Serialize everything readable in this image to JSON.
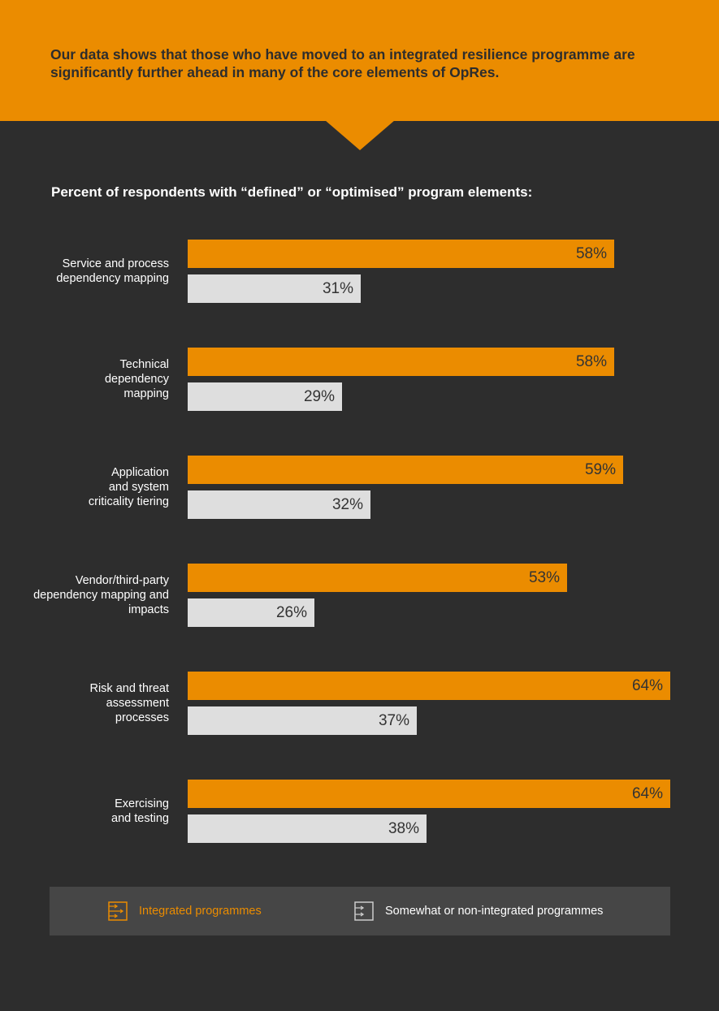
{
  "header": {
    "text": "Our data shows that those who have moved to an integrated resilience programme are significantly further ahead in many of the core elements of OpRes."
  },
  "colors": {
    "integrated": "#eb8c00",
    "non_integrated": "#dedede",
    "background": "#2d2d2d"
  },
  "chart_data": {
    "type": "bar",
    "orientation": "horizontal",
    "title": "Percent of respondents with “defined” or “optimised” program elements:",
    "categories": [
      "Service and process\ndependency mapping",
      "Technical\ndependency\nmapping",
      "Application\nand system\ncriticality tiering",
      "Vendor/third-party\ndependency mapping and\nimpacts",
      "Risk and threat\nassessment\nprocesses",
      "Exercising\nand testing"
    ],
    "series": [
      {
        "name": "Integrated programmes",
        "values": [
          58,
          58,
          59,
          53,
          64,
          64
        ],
        "labels": [
          "58%",
          "58%",
          "59%",
          "53%",
          "64%",
          "64%"
        ]
      },
      {
        "name": "Somewhat or non-integrated programmes",
        "values": [
          31,
          29,
          32,
          26,
          37,
          38
        ],
        "labels": [
          "31%",
          "29%",
          "32%",
          "26%",
          "37%",
          "38%"
        ]
      }
    ],
    "unit": "%",
    "legend_position": "bottom"
  }
}
